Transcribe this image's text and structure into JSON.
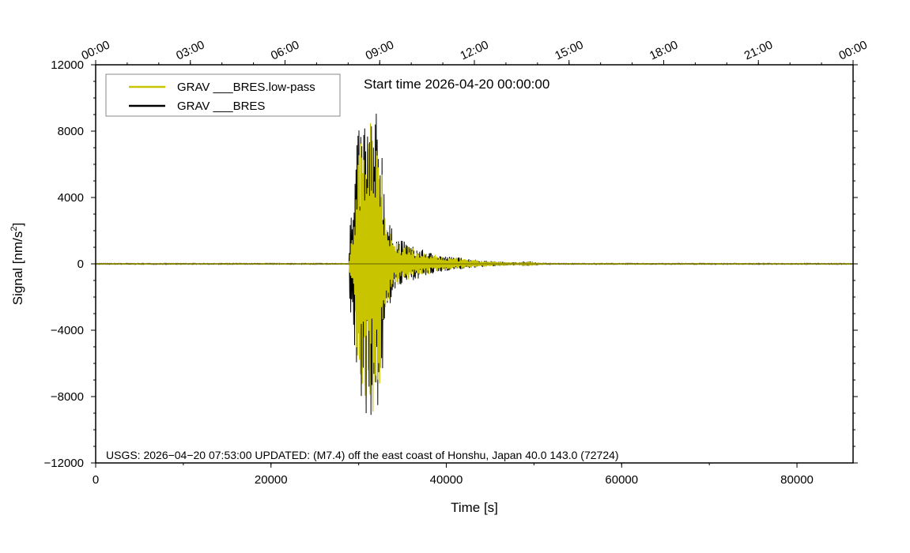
{
  "chart_data": {
    "type": "line",
    "title": "Start time 2026-04-20 00:00:00",
    "xlabel": "Time [s]",
    "ylabel": "Signal [nm/s",
    "ylabel_sup": "2",
    "ylabel_end": "]",
    "xlim": [
      0,
      86400
    ],
    "ylim": [
      -12000,
      12000
    ],
    "x_ticks": [
      0,
      20000,
      40000,
      60000,
      80000
    ],
    "x_tick_labels": [
      "0",
      "20000",
      "40000",
      "60000",
      "80000"
    ],
    "y_ticks": [
      -12000,
      -8000,
      -4000,
      0,
      4000,
      8000,
      12000
    ],
    "y_tick_labels": [
      "−12000",
      "−8000",
      "−4000",
      "0",
      "4000",
      "8000",
      "12000"
    ],
    "top_ticks": [
      0,
      10800,
      21600,
      32400,
      43200,
      54000,
      64800,
      75600,
      86400
    ],
    "top_tick_labels": [
      "00:00",
      "03:00",
      "06:00",
      "09:00",
      "12:00",
      "15:00",
      "18:00",
      "21:00",
      "00:00"
    ],
    "grid": false,
    "legend_position": "top-left",
    "annotation": "USGS: 2026−04−20 07:53:00 UPDATED: (M7.4) off the east coast of Honshu, Japan 40.0 143.0 (72724)",
    "event": {
      "onset_s": 29000,
      "peak_start_s": 30500,
      "peak_end_s": 32600,
      "end_s": 50000
    },
    "series": [
      {
        "name": "GRAV ___BRES",
        "color": "#000000",
        "envelope": {
          "x": [
            0,
            28900,
            29050,
            29300,
            29700,
            30300,
            30700,
            31400,
            32000,
            32600,
            33200,
            34000,
            35000,
            36000,
            38000,
            40000,
            42000,
            44000,
            46000,
            48000,
            49500,
            50500,
            52000,
            86400
          ],
          "upper": [
            40,
            40,
            5800,
            2200,
            7500,
            8500,
            9300,
            9200,
            9200,
            8000,
            3000,
            1800,
            1400,
            1100,
            700,
            450,
            350,
            200,
            120,
            80,
            150,
            60,
            40,
            40
          ],
          "lower": [
            -40,
            -40,
            -6700,
            -3000,
            -7000,
            -8500,
            -9300,
            -9200,
            -9200,
            -8000,
            -3200,
            -1700,
            -1300,
            -1000,
            -700,
            -400,
            -300,
            -180,
            -110,
            -70,
            -140,
            -60,
            -40,
            -40
          ]
        }
      },
      {
        "name": "GRAV ___BRES.low-pass",
        "color": "#c8c400",
        "envelope": {
          "x": [
            0,
            28900,
            29100,
            29400,
            29800,
            30300,
            30700,
            31400,
            32000,
            32500,
            33200,
            34000,
            35000,
            36000,
            38000,
            40000,
            42000,
            44000,
            46000,
            48000,
            49500,
            50500,
            52000,
            86400
          ],
          "upper": [
            25,
            25,
            1500,
            2000,
            5500,
            7800,
            8900,
            9000,
            8900,
            7600,
            2600,
            1500,
            1200,
            950,
            600,
            380,
            280,
            160,
            100,
            70,
            130,
            50,
            30,
            25
          ],
          "lower": [
            -25,
            -25,
            -1600,
            -2200,
            -5500,
            -8000,
            -8900,
            -9000,
            -8900,
            -7600,
            -2700,
            -1400,
            -1100,
            -850,
            -600,
            -330,
            -250,
            -150,
            -90,
            -60,
            -120,
            -50,
            -30,
            -25
          ]
        }
      }
    ]
  }
}
